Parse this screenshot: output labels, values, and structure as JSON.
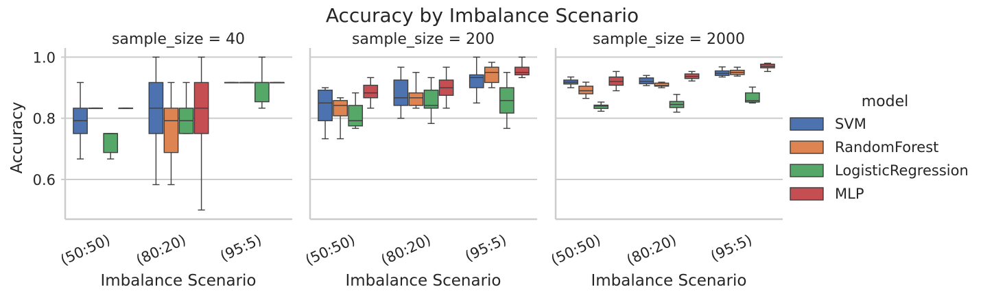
{
  "chart_data": {
    "type": "box",
    "title": "Accuracy by Imbalance Scenario",
    "ylabel": "Accuracy",
    "xlabel": "Imbalance Scenario",
    "ylim": [
      0.47,
      1.03
    ],
    "yticks": [
      0.6,
      0.8,
      1.0
    ],
    "ytick_labels": [
      "0.6",
      "0.8",
      "1.0"
    ],
    "grid": true,
    "legend": {
      "title": "model",
      "position": "right",
      "entries": [
        {
          "name": "SVM",
          "color": "#4c72b0"
        },
        {
          "name": "RandomForest",
          "color": "#dd8452"
        },
        {
          "name": "LogisticRegression",
          "color": "#55a868"
        },
        {
          "name": "MLP",
          "color": "#c44e52"
        }
      ]
    },
    "categories": [
      "(50:50)",
      "(80:20)",
      "(95:5)"
    ],
    "panels": [
      {
        "title": "sample_size = 40",
        "groups": [
          [
            {
              "min": 0.667,
              "q1": 0.75,
              "median": 0.792,
              "q3": 0.833,
              "max": 0.917
            },
            {
              "min": 0.833,
              "q1": 0.833,
              "median": 0.833,
              "q3": 0.833,
              "max": 0.833
            },
            {
              "min": 0.667,
              "q1": 0.688,
              "median": 0.75,
              "q3": 0.75,
              "max": 0.75
            },
            {
              "min": 0.833,
              "q1": 0.833,
              "median": 0.833,
              "q3": 0.833,
              "max": 0.833
            }
          ],
          [
            {
              "min": 0.583,
              "q1": 0.75,
              "median": 0.833,
              "q3": 0.917,
              "max": 1.0
            },
            {
              "min": 0.583,
              "q1": 0.688,
              "median": 0.792,
              "q3": 0.833,
              "max": 0.917
            },
            {
              "min": 0.75,
              "q1": 0.75,
              "median": 0.792,
              "q3": 0.833,
              "max": 0.917
            },
            {
              "min": 0.5,
              "q1": 0.75,
              "median": 0.833,
              "q3": 0.917,
              "max": 1.0
            }
          ],
          [
            {
              "min": 0.917,
              "q1": 0.917,
              "median": 0.917,
              "q3": 0.917,
              "max": 0.917
            },
            {
              "min": 0.917,
              "q1": 0.917,
              "median": 0.917,
              "q3": 0.917,
              "max": 0.917
            },
            {
              "min": 0.833,
              "q1": 0.854,
              "median": 0.917,
              "q3": 0.917,
              "max": 1.0
            },
            {
              "min": 0.917,
              "q1": 0.917,
              "median": 0.917,
              "q3": 0.917,
              "max": 0.917
            }
          ]
        ]
      },
      {
        "title": "sample_size = 200",
        "groups": [
          [
            {
              "min": 0.733,
              "q1": 0.792,
              "median": 0.85,
              "q3": 0.892,
              "max": 0.9
            },
            {
              "min": 0.733,
              "q1": 0.808,
              "median": 0.842,
              "q3": 0.858,
              "max": 0.867
            },
            {
              "min": 0.767,
              "q1": 0.775,
              "median": 0.792,
              "q3": 0.842,
              "max": 0.883
            },
            {
              "min": 0.833,
              "q1": 0.867,
              "median": 0.883,
              "q3": 0.908,
              "max": 0.933
            }
          ],
          [
            {
              "min": 0.8,
              "q1": 0.842,
              "median": 0.867,
              "q3": 0.925,
              "max": 0.967
            },
            {
              "min": 0.833,
              "q1": 0.842,
              "median": 0.867,
              "q3": 0.883,
              "max": 0.95
            },
            {
              "min": 0.783,
              "q1": 0.833,
              "median": 0.842,
              "q3": 0.892,
              "max": 0.933
            },
            {
              "min": 0.833,
              "q1": 0.875,
              "median": 0.9,
              "q3": 0.925,
              "max": 0.967
            }
          ],
          [
            {
              "min": 0.85,
              "q1": 0.9,
              "median": 0.933,
              "q3": 0.942,
              "max": 1.0
            },
            {
              "min": 0.9,
              "q1": 0.917,
              "median": 0.95,
              "q3": 0.967,
              "max": 0.983
            },
            {
              "min": 0.767,
              "q1": 0.817,
              "median": 0.858,
              "q3": 0.9,
              "max": 0.95
            },
            {
              "min": 0.933,
              "q1": 0.942,
              "median": 0.95,
              "q3": 0.967,
              "max": 1.0
            }
          ]
        ]
      },
      {
        "title": "sample_size = 2000",
        "groups": [
          [
            {
              "min": 0.9,
              "q1": 0.912,
              "median": 0.918,
              "q3": 0.925,
              "max": 0.935
            },
            {
              "min": 0.865,
              "q1": 0.88,
              "median": 0.89,
              "q3": 0.905,
              "max": 0.918
            },
            {
              "min": 0.823,
              "q1": 0.832,
              "median": 0.84,
              "q3": 0.843,
              "max": 0.853
            },
            {
              "min": 0.89,
              "q1": 0.908,
              "median": 0.92,
              "q3": 0.935,
              "max": 0.953
            }
          ],
          [
            {
              "min": 0.907,
              "q1": 0.913,
              "median": 0.92,
              "q3": 0.932,
              "max": 0.94
            },
            {
              "min": 0.9,
              "q1": 0.905,
              "median": 0.907,
              "q3": 0.915,
              "max": 0.918
            },
            {
              "min": 0.82,
              "q1": 0.835,
              "median": 0.845,
              "q3": 0.855,
              "max": 0.878
            },
            {
              "min": 0.922,
              "q1": 0.93,
              "median": 0.937,
              "q3": 0.945,
              "max": 0.953
            }
          ],
          [
            {
              "min": 0.935,
              "q1": 0.94,
              "median": 0.947,
              "q3": 0.955,
              "max": 0.968
            },
            {
              "min": 0.938,
              "q1": 0.943,
              "median": 0.95,
              "q3": 0.957,
              "max": 0.967
            },
            {
              "min": 0.85,
              "q1": 0.853,
              "median": 0.858,
              "q3": 0.883,
              "max": 0.902
            },
            {
              "min": 0.953,
              "q1": 0.965,
              "median": 0.97,
              "q3": 0.977,
              "max": 0.98
            }
          ]
        ]
      }
    ]
  }
}
